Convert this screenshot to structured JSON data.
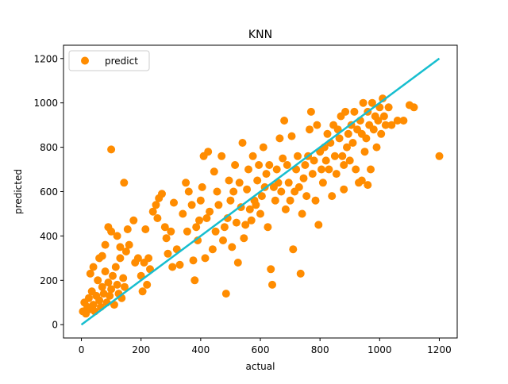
{
  "chart_data": {
    "type": "scatter",
    "title": "KNN",
    "xlabel": "actual",
    "ylabel": "predicted",
    "xlim": [
      -60,
      1260
    ],
    "ylim": [
      -60,
      1260
    ],
    "xticks": [
      0,
      200,
      400,
      600,
      800,
      1000,
      1200
    ],
    "yticks": [
      0,
      200,
      400,
      600,
      800,
      1000,
      1200
    ],
    "grid": false,
    "legend": {
      "placement": "top-left",
      "entries": [
        {
          "label": "predict",
          "color": "#ff8c00",
          "marker": "circle"
        }
      ]
    },
    "series": [
      {
        "name": "predict",
        "kind": "scatter",
        "color": "#ff8c00",
        "points": [
          [
            5,
            60
          ],
          [
            10,
            100
          ],
          [
            15,
            50
          ],
          [
            20,
            80
          ],
          [
            25,
            120
          ],
          [
            30,
            70
          ],
          [
            35,
            150
          ],
          [
            40,
            90
          ],
          [
            45,
            60
          ],
          [
            50,
            130
          ],
          [
            55,
            200
          ],
          [
            60,
            110
          ],
          [
            65,
            80
          ],
          [
            70,
            170
          ],
          [
            75,
            140
          ],
          [
            80,
            240
          ],
          [
            85,
            100
          ],
          [
            90,
            190
          ],
          [
            95,
            130
          ],
          [
            100,
            160
          ],
          [
            105,
            220
          ],
          [
            110,
            90
          ],
          [
            115,
            260
          ],
          [
            120,
            180
          ],
          [
            125,
            140
          ],
          [
            130,
            300
          ],
          [
            135,
            120
          ],
          [
            140,
            210
          ],
          [
            145,
            170
          ],
          [
            150,
            330
          ],
          [
            30,
            230
          ],
          [
            40,
            260
          ],
          [
            60,
            300
          ],
          [
            70,
            310
          ],
          [
            80,
            360
          ],
          [
            90,
            440
          ],
          [
            100,
            420
          ],
          [
            120,
            400
          ],
          [
            130,
            350
          ],
          [
            155,
            430
          ],
          [
            100,
            790
          ],
          [
            143,
            640
          ],
          [
            160,
            360
          ],
          [
            175,
            470
          ],
          [
            180,
            280
          ],
          [
            190,
            300
          ],
          [
            200,
            220
          ],
          [
            205,
            150
          ],
          [
            210,
            280
          ],
          [
            215,
            430
          ],
          [
            220,
            180
          ],
          [
            225,
            300
          ],
          [
            230,
            250
          ],
          [
            240,
            510
          ],
          [
            250,
            540
          ],
          [
            255,
            480
          ],
          [
            260,
            570
          ],
          [
            270,
            590
          ],
          [
            280,
            440
          ],
          [
            285,
            390
          ],
          [
            290,
            320
          ],
          [
            300,
            420
          ],
          [
            305,
            260
          ],
          [
            310,
            550
          ],
          [
            320,
            340
          ],
          [
            330,
            270
          ],
          [
            340,
            500
          ],
          [
            350,
            640
          ],
          [
            355,
            420
          ],
          [
            360,
            600
          ],
          [
            370,
            540
          ],
          [
            375,
            290
          ],
          [
            380,
            200
          ],
          [
            385,
            440
          ],
          [
            390,
            380
          ],
          [
            395,
            470
          ],
          [
            400,
            560
          ],
          [
            405,
            620
          ],
          [
            410,
            760
          ],
          [
            415,
            300
          ],
          [
            420,
            480
          ],
          [
            425,
            780
          ],
          [
            430,
            510
          ],
          [
            440,
            340
          ],
          [
            445,
            690
          ],
          [
            450,
            420
          ],
          [
            455,
            600
          ],
          [
            460,
            540
          ],
          [
            470,
            760
          ],
          [
            475,
            380
          ],
          [
            480,
            440
          ],
          [
            485,
            140
          ],
          [
            490,
            480
          ],
          [
            495,
            650
          ],
          [
            500,
            560
          ],
          [
            505,
            350
          ],
          [
            510,
            600
          ],
          [
            515,
            720
          ],
          [
            520,
            460
          ],
          [
            525,
            280
          ],
          [
            530,
            640
          ],
          [
            535,
            530
          ],
          [
            540,
            820
          ],
          [
            545,
            390
          ],
          [
            550,
            450
          ],
          [
            555,
            610
          ],
          [
            560,
            700
          ],
          [
            565,
            520
          ],
          [
            570,
            470
          ],
          [
            575,
            760
          ],
          [
            580,
            560
          ],
          [
            585,
            540
          ],
          [
            590,
            650
          ],
          [
            595,
            720
          ],
          [
            600,
            500
          ],
          [
            605,
            580
          ],
          [
            610,
            800
          ],
          [
            615,
            620
          ],
          [
            620,
            680
          ],
          [
            625,
            440
          ],
          [
            630,
            720
          ],
          [
            635,
            250
          ],
          [
            640,
            180
          ],
          [
            645,
            620
          ],
          [
            650,
            560
          ],
          [
            655,
            700
          ],
          [
            660,
            640
          ],
          [
            665,
            840
          ],
          [
            670,
            600
          ],
          [
            675,
            750
          ],
          [
            680,
            920
          ],
          [
            685,
            520
          ],
          [
            690,
            720
          ],
          [
            695,
            640
          ],
          [
            700,
            560
          ],
          [
            705,
            850
          ],
          [
            710,
            340
          ],
          [
            715,
            600
          ],
          [
            720,
            700
          ],
          [
            725,
            760
          ],
          [
            730,
            620
          ],
          [
            735,
            230
          ],
          [
            740,
            500
          ],
          [
            745,
            660
          ],
          [
            750,
            720
          ],
          [
            755,
            580
          ],
          [
            760,
            760
          ],
          [
            765,
            880
          ],
          [
            770,
            960
          ],
          [
            775,
            680
          ],
          [
            780,
            740
          ],
          [
            785,
            560
          ],
          [
            790,
            900
          ],
          [
            795,
            450
          ],
          [
            800,
            780
          ],
          [
            805,
            700
          ],
          [
            810,
            640
          ],
          [
            815,
            800
          ],
          [
            820,
            740
          ],
          [
            825,
            860
          ],
          [
            830,
            700
          ],
          [
            835,
            820
          ],
          [
            840,
            580
          ],
          [
            845,
            900
          ],
          [
            850,
            760
          ],
          [
            855,
            680
          ],
          [
            860,
            880
          ],
          [
            865,
            840
          ],
          [
            870,
            940
          ],
          [
            875,
            760
          ],
          [
            880,
            720
          ],
          [
            885,
            960
          ],
          [
            890,
            800
          ],
          [
            895,
            860
          ],
          [
            900,
            740
          ],
          [
            905,
            900
          ],
          [
            910,
            820
          ],
          [
            915,
            960
          ],
          [
            920,
            700
          ],
          [
            925,
            880
          ],
          [
            930,
            640
          ],
          [
            935,
            920
          ],
          [
            940,
            860
          ],
          [
            945,
            1000
          ],
          [
            950,
            780
          ],
          [
            955,
            840
          ],
          [
            960,
            960
          ],
          [
            965,
            900
          ],
          [
            970,
            700
          ],
          [
            975,
            1000
          ],
          [
            980,
            880
          ],
          [
            985,
            940
          ],
          [
            990,
            800
          ],
          [
            995,
            920
          ],
          [
            1000,
            980
          ],
          [
            1005,
            860
          ],
          [
            1010,
            1020
          ],
          [
            1015,
            940
          ],
          [
            1020,
            900
          ],
          [
            1030,
            980
          ],
          [
            1040,
            900
          ],
          [
            1060,
            920
          ],
          [
            1080,
            920
          ],
          [
            1100,
            990
          ],
          [
            1115,
            980
          ],
          [
            1200,
            760
          ],
          [
            960,
            630
          ],
          [
            940,
            650
          ],
          [
            880,
            610
          ]
        ]
      },
      {
        "name": "",
        "kind": "line",
        "color": "#17becf",
        "points": [
          [
            0,
            0
          ],
          [
            1200,
            1200
          ]
        ]
      }
    ]
  }
}
